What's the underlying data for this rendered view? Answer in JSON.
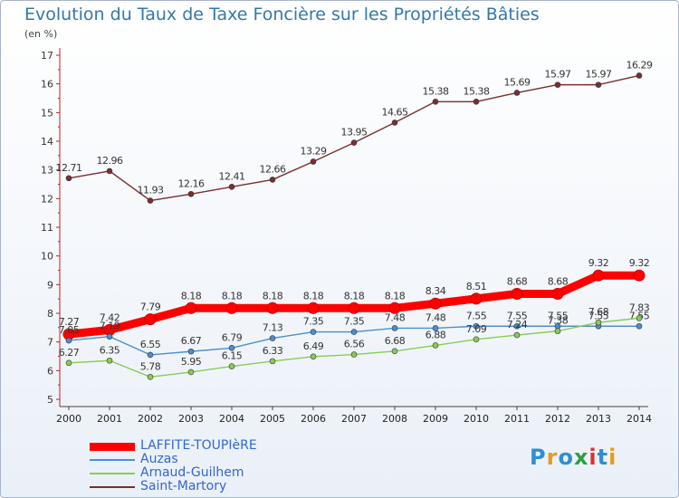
{
  "title": "Evolution du Taux de Taxe Foncière sur les Propriétés Bâties",
  "unit_label": "(en %)",
  "logo": {
    "text": "Proxiti",
    "colors": [
      "#2f8fd0",
      "#e89a1a",
      "#2f8fd0",
      "#2aa040",
      "#e03030",
      "#2f8fd0",
      "#e89a1a"
    ]
  },
  "chart_data": {
    "type": "line",
    "title": "Evolution du Taux de Taxe Foncière sur les Propriétés Bâties",
    "ylabel": "(en %)",
    "xlabel": "",
    "x": [
      2000,
      2001,
      2002,
      2003,
      2004,
      2005,
      2006,
      2007,
      2008,
      2009,
      2010,
      2011,
      2012,
      2013,
      2014
    ],
    "ylim": [
      5,
      17
    ],
    "yticks": [
      5,
      6,
      7,
      8,
      9,
      10,
      11,
      12,
      13,
      14,
      15,
      16,
      17
    ],
    "grid": false,
    "legend_position": "bottom-left",
    "series": [
      {
        "name": "LAFFITE-TOUPIèRE",
        "color": "#ff0000",
        "values": [
          7.27,
          7.42,
          7.79,
          8.18,
          8.18,
          8.18,
          8.18,
          8.18,
          8.18,
          8.34,
          8.51,
          8.68,
          8.68,
          9.32,
          9.32
        ],
        "labels": [
          "7.27",
          "7.42",
          "7.79",
          "8.18",
          "8.18",
          "8.18",
          "8.18",
          "8.18",
          "8.18",
          "8.34",
          "8.51",
          "8.68",
          "8.68",
          "9.32",
          "9.32"
        ]
      },
      {
        "name": "Auzas",
        "color": "#4a8fd0",
        "values": [
          7.05,
          7.19,
          6.55,
          6.67,
          6.79,
          7.13,
          7.35,
          7.35,
          7.48,
          7.48,
          7.55,
          7.55,
          7.55,
          7.55,
          7.55
        ],
        "labels": [
          "7.05",
          "7.19",
          "6.55",
          "6.67",
          "6.79",
          "7.13",
          "7.35",
          "7.35",
          "7.48",
          "7.48",
          "7.55",
          "7.55",
          "7.55",
          "7.55",
          "7.55"
        ]
      },
      {
        "name": "Arnaud-Guilhem",
        "color": "#88cc55",
        "values": [
          6.27,
          6.35,
          5.78,
          5.95,
          6.15,
          6.33,
          6.49,
          6.56,
          6.68,
          6.88,
          7.09,
          7.24,
          7.38,
          7.68,
          7.83
        ],
        "labels": [
          "6.27",
          "6.35",
          "5.78",
          "5.95",
          "6.15",
          "6.33",
          "6.49",
          "6.56",
          "6.68",
          "6.88",
          "7.09",
          "7.24",
          "7.38",
          "7.68",
          "7.83"
        ]
      },
      {
        "name": "Saint-Martory",
        "color": "#7a2e2e",
        "values": [
          12.71,
          12.96,
          11.93,
          12.16,
          12.41,
          12.66,
          13.29,
          13.95,
          14.65,
          15.38,
          15.38,
          15.69,
          15.97,
          15.97,
          16.29
        ],
        "labels": [
          "12.71",
          "12.96",
          "11.93",
          "12.16",
          "12.41",
          "12.66",
          "13.29",
          "13.95",
          "14.65",
          "15.38",
          "15.38",
          "15.69",
          "15.97",
          "15.97",
          "16.29"
        ]
      }
    ]
  }
}
